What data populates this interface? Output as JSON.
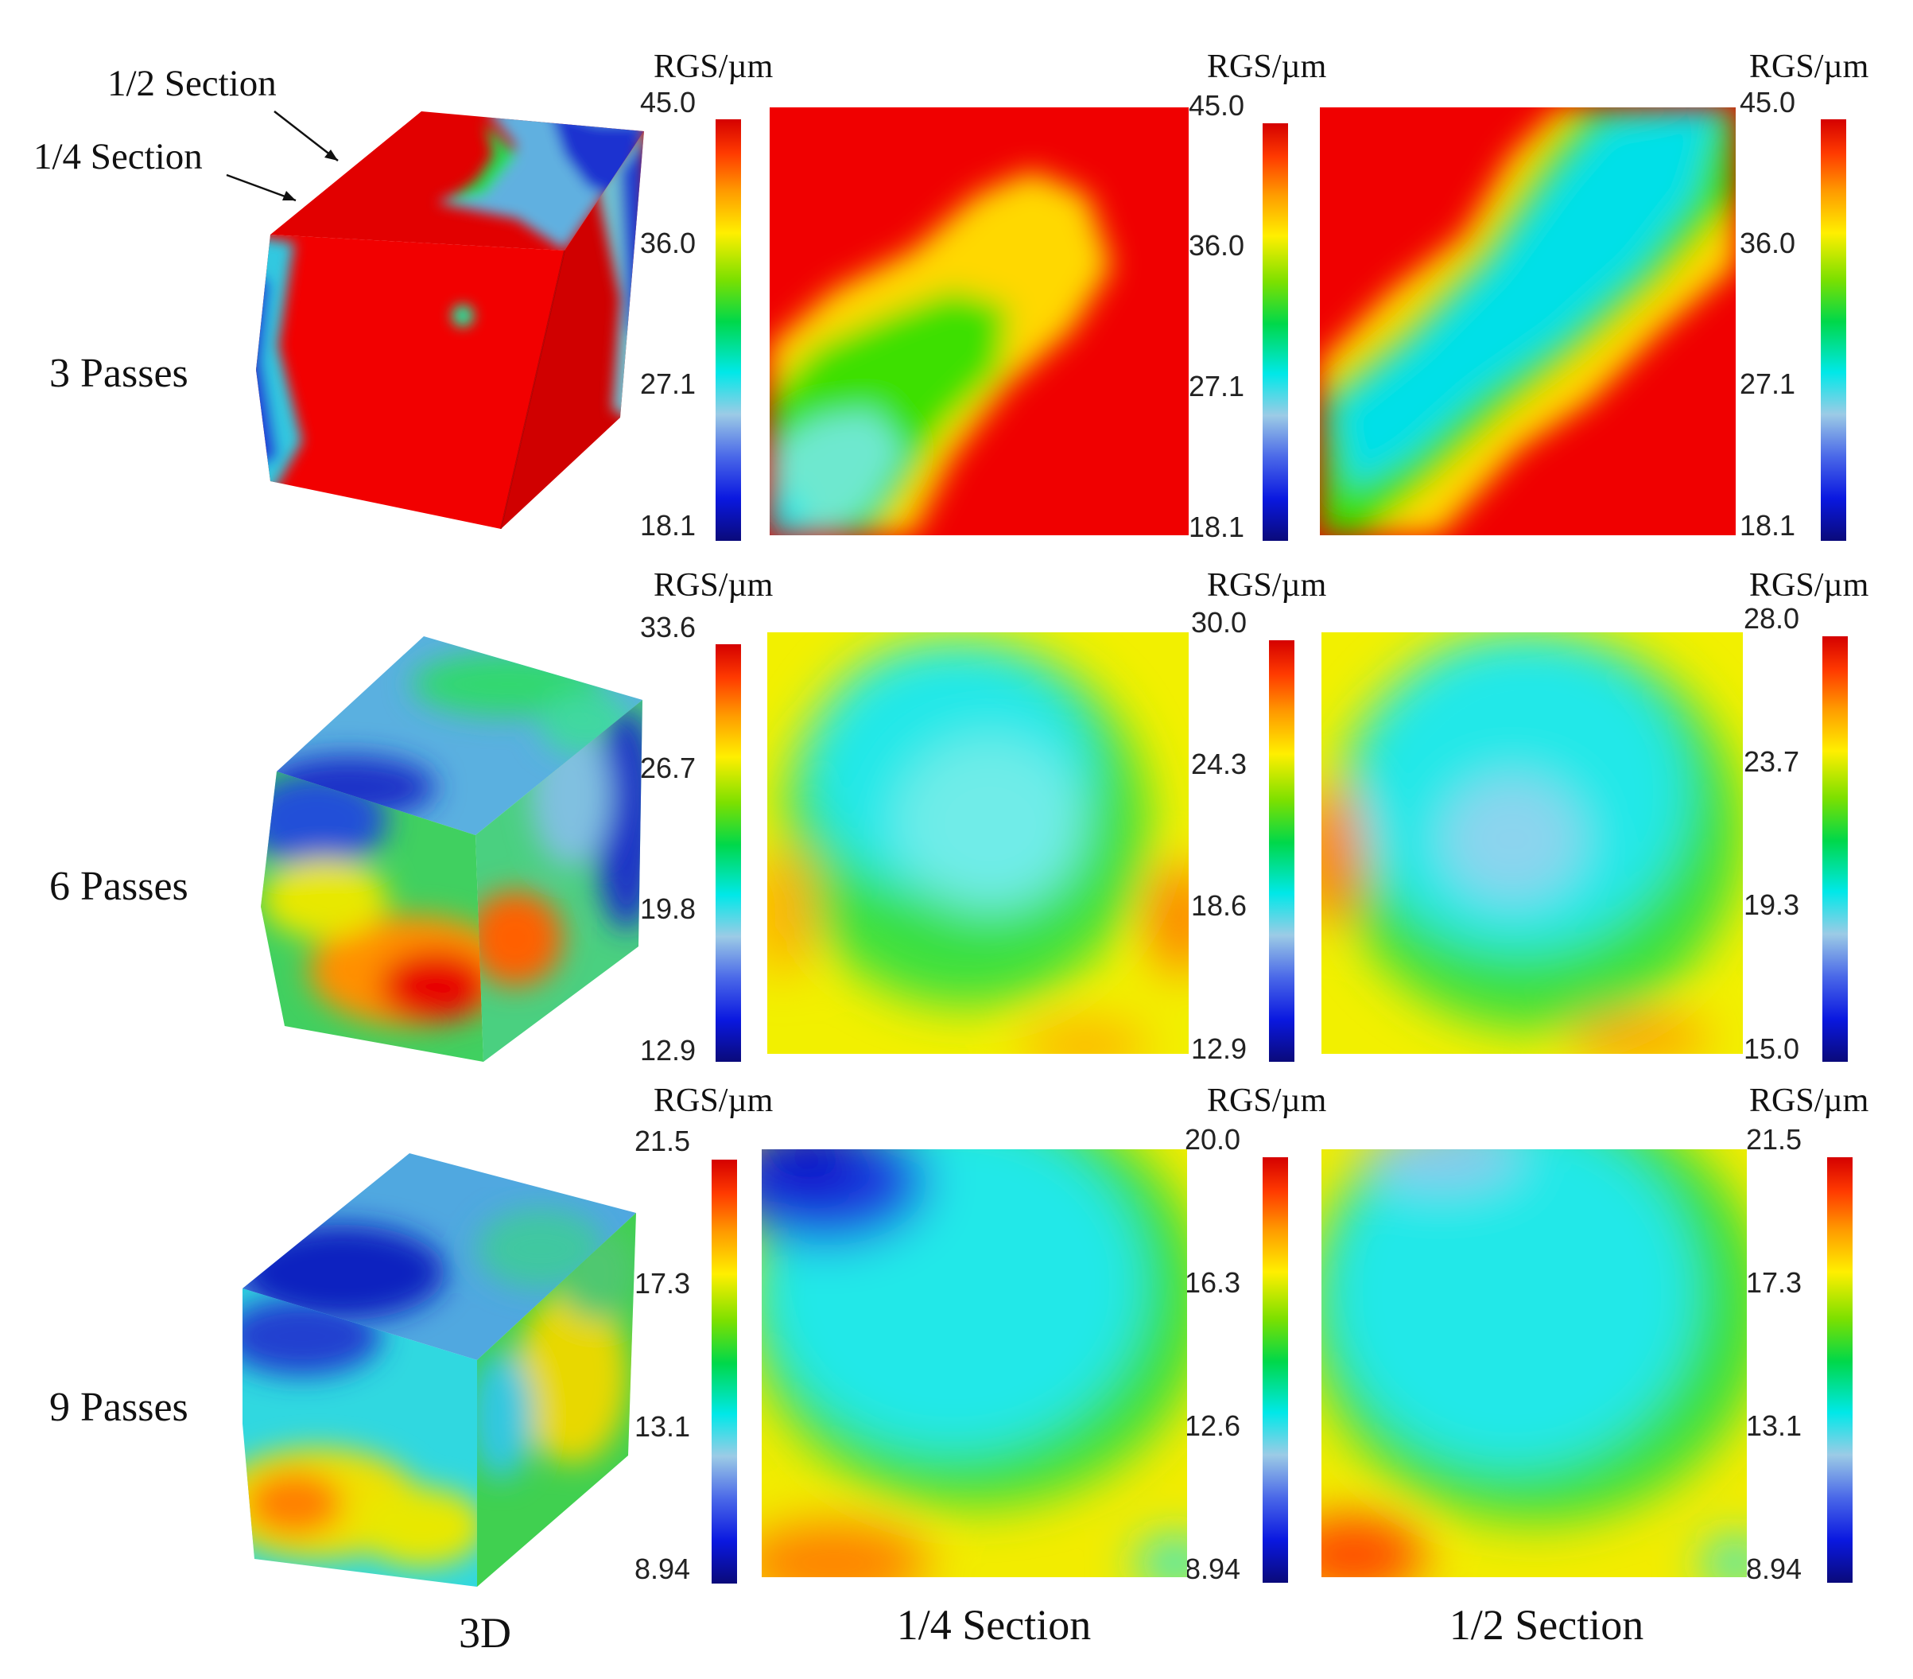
{
  "callouts": {
    "half_section": "1/2 Section",
    "quarter_section": "1/4 Section"
  },
  "column_labels": [
    "3D",
    "1/4 Section",
    "1/2 Section"
  ],
  "unit_label": "RGS/µm",
  "rows": [
    {
      "label": "3 Passes",
      "colorbars": [
        {
          "ticks": [
            "45.0",
            "36.0",
            "27.1",
            "18.1"
          ]
        },
        {
          "ticks": [
            "45.0",
            "36.0",
            "27.1",
            "18.1"
          ]
        },
        {
          "ticks": [
            "45.0",
            "36.0",
            "27.1",
            "18.1"
          ]
        }
      ]
    },
    {
      "label": "6 Passes",
      "colorbars": [
        {
          "ticks": [
            "33.6",
            "26.7",
            "19.8",
            "12.9"
          ]
        },
        {
          "ticks": [
            "30.0",
            "24.3",
            "18.6",
            "12.9"
          ]
        },
        {
          "ticks": [
            "28.0",
            "23.7",
            "19.3",
            "15.0"
          ]
        }
      ]
    },
    {
      "label": "9 Passes",
      "colorbars": [
        {
          "ticks": [
            "21.5",
            "17.3",
            "13.1",
            "8.94"
          ]
        },
        {
          "ticks": [
            "20.0",
            "16.3",
            "12.6",
            "8.94"
          ]
        },
        {
          "ticks": [
            "21.5",
            "17.3",
            "13.1",
            "8.94"
          ]
        }
      ]
    }
  ]
}
